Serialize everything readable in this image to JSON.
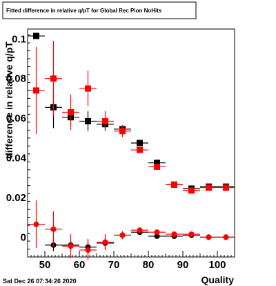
{
  "chart_data": {
    "type": "scatter",
    "title": "Fitted difference in relative q/pT for Global Rec Pion NoHits",
    "xlabel": "Quality",
    "ylabel": "difference in relative q/pT",
    "xlim": [
      45,
      105
    ],
    "ylim": [
      -0.01,
      0.105
    ],
    "xticks": [
      50,
      60,
      70,
      80,
      90,
      100
    ],
    "xtick_labels": [
      "50",
      "60",
      "70",
      "80",
      "90",
      "100"
    ],
    "yticks": [
      0,
      0.02,
      0.04,
      0.06,
      0.08,
      0.1
    ],
    "ytick_labels": [
      "0",
      "0.02",
      "0.04",
      "0.06",
      "0.08",
      "0.1"
    ],
    "grid": false,
    "series": [
      {
        "marker": "square",
        "color": "#000000",
        "x": [
          47.5,
          52.5,
          57.5,
          62.5,
          67.5,
          72.5,
          77.5,
          82.5,
          87.5,
          92.5,
          97.5,
          102.5
        ],
        "y": [
          0.1015,
          0.0655,
          0.0605,
          0.0585,
          0.057,
          0.0545,
          0.0475,
          0.0375,
          0.0265,
          0.0245,
          0.0255,
          0.0255
        ],
        "err": [
          0.0,
          0.0105,
          0.004,
          0.005,
          0.003,
          0.002,
          0.001,
          0.001,
          0.0008,
          0.0008,
          0.0008,
          0.0008
        ]
      },
      {
        "marker": "square",
        "color": "#ff0000",
        "x": [
          47.5,
          52.5,
          57.5,
          62.5,
          67.5,
          72.5,
          77.5,
          82.5,
          87.5,
          92.5,
          97.5,
          102.5
        ],
        "y": [
          0.074,
          0.08,
          0.063,
          0.075,
          0.0585,
          0.0535,
          0.044,
          0.0355,
          0.0265,
          0.0235,
          0.025,
          0.025
        ],
        "err": [
          0.022,
          0.019,
          0.009,
          0.009,
          0.005,
          0.003,
          0.0015,
          0.001,
          0.0008,
          0.0008,
          0.0008,
          0.0008
        ]
      },
      {
        "marker": "circle",
        "color": "#000000",
        "x": [
          52.5,
          57.5,
          62.5,
          67.5,
          72.5,
          77.5,
          82.5,
          87.5,
          92.5,
          97.5,
          102.5
        ],
        "y": [
          -0.004,
          -0.004,
          -0.005,
          -0.003,
          0.001,
          0.0025,
          0.0005,
          0.0005,
          0.001,
          0.0,
          0.0
        ],
        "err": [
          0.003,
          0.003,
          0.004,
          0.003,
          0.002,
          0.001,
          0.0008,
          0.0006,
          0.0006,
          0.0006,
          0.0006
        ]
      },
      {
        "marker": "circle",
        "color": "#ff0000",
        "x": [
          47.5,
          52.5,
          57.5,
          62.5,
          67.5,
          72.5,
          77.5,
          82.5,
          87.5,
          92.5,
          97.5,
          102.5
        ],
        "y": [
          0.0065,
          0.004,
          -0.0045,
          -0.0065,
          -0.0025,
          0.001,
          0.0035,
          0.0025,
          0.0015,
          0.0015,
          0.0,
          0.0
        ],
        "err": [
          0.012,
          0.009,
          0.006,
          0.005,
          0.004,
          0.002,
          0.0015,
          0.001,
          0.0008,
          0.0008,
          0.0008,
          0.0008
        ]
      }
    ]
  },
  "footer": {
    "timestamp": "Sat Dec 26 07:34:26 2020"
  }
}
